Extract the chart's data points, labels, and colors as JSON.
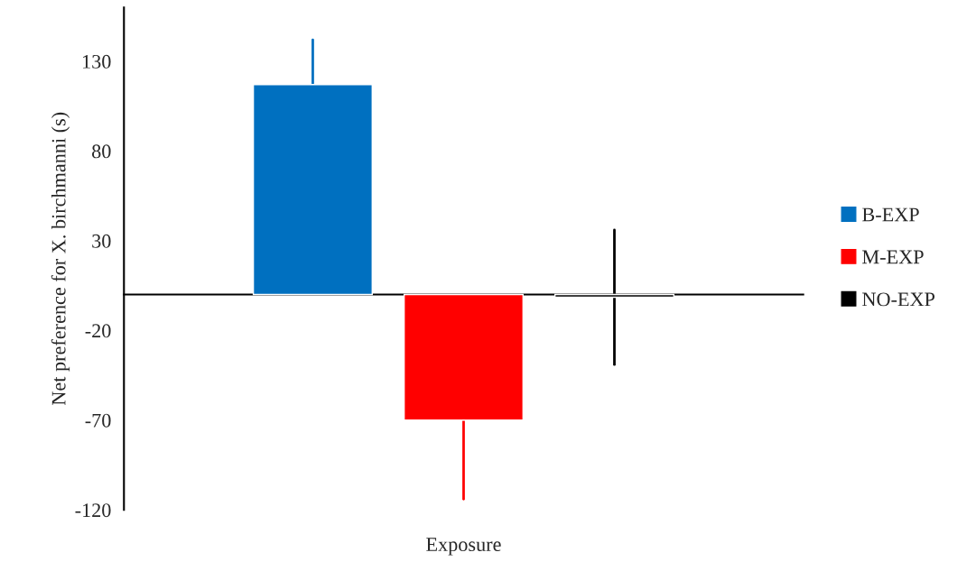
{
  "chart_data": {
    "type": "bar",
    "xlabel": "Exposure",
    "ylabel": "Net preference for X. birchmanni (s)",
    "categories": [
      null
    ],
    "series": [
      {
        "name": "B-EXP",
        "color": "#0070c0",
        "values": [
          117
        ],
        "errors": [
          [
            117,
            142
          ]
        ]
      },
      {
        "name": "M-EXP",
        "color": "#ff0000",
        "values": [
          -70
        ],
        "errors": [
          [
            -114,
            -70
          ]
        ]
      },
      {
        "name": "NO-EXP",
        "color": "#000000",
        "values": [
          -1.5
        ],
        "errors": [
          [
            -39,
            36
          ]
        ]
      }
    ],
    "ylim": [
      -120,
      160
    ],
    "yticks": [
      -120,
      -70,
      -20,
      30,
      80,
      130
    ],
    "grid": false,
    "legend": "right"
  }
}
